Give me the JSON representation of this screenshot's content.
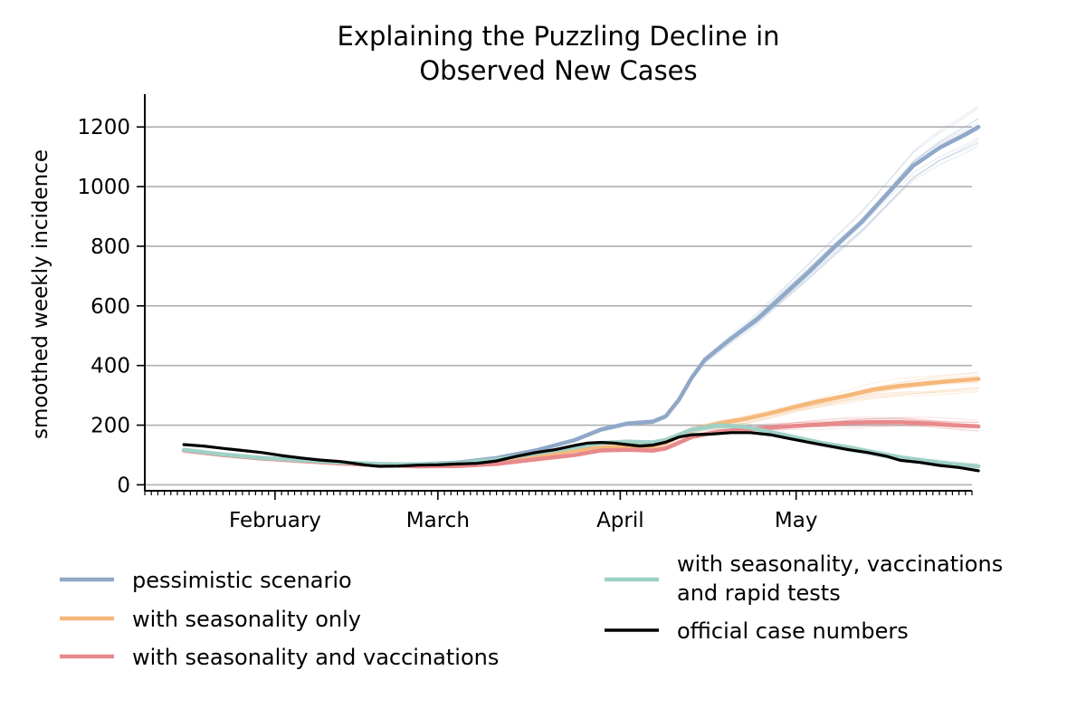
{
  "chart_data": {
    "type": "line",
    "title_lines": [
      "Explaining the Puzzling Decline in",
      "Observed New Cases"
    ],
    "xlabel": "",
    "ylabel": "smoothed weekly incidence",
    "x_tick_labels": [
      "February",
      "March",
      "April",
      "May"
    ],
    "y_ticks": [
      0,
      200,
      400,
      600,
      800,
      1000,
      1200
    ],
    "ylim": [
      -20,
      1310
    ],
    "x_range_days": [
      0,
      127
    ],
    "x_tick_days": [
      20,
      45,
      73,
      100
    ],
    "grid": "horizontal",
    "legend_position": "bottom",
    "series": [
      {
        "name": "pessimistic scenario",
        "color": "#8fa8c8",
        "points": [
          [
            6,
            115
          ],
          [
            12,
            100
          ],
          [
            18,
            90
          ],
          [
            24,
            82
          ],
          [
            30,
            74
          ],
          [
            36,
            68
          ],
          [
            42,
            69
          ],
          [
            48,
            74
          ],
          [
            54,
            90
          ],
          [
            60,
            115
          ],
          [
            66,
            150
          ],
          [
            70,
            185
          ],
          [
            74,
            205
          ],
          [
            78,
            212
          ],
          [
            80,
            230
          ],
          [
            82,
            285
          ],
          [
            84,
            360
          ],
          [
            86,
            420
          ],
          [
            90,
            490
          ],
          [
            94,
            555
          ],
          [
            98,
            635
          ],
          [
            102,
            715
          ],
          [
            106,
            800
          ],
          [
            110,
            880
          ],
          [
            114,
            975
          ],
          [
            118,
            1070
          ],
          [
            122,
            1130
          ],
          [
            126,
            1175
          ],
          [
            128,
            1200
          ]
        ]
      },
      {
        "name": "with seasonality only",
        "color": "#f5b87a",
        "points": [
          [
            6,
            115
          ],
          [
            12,
            100
          ],
          [
            18,
            88
          ],
          [
            24,
            80
          ],
          [
            30,
            72
          ],
          [
            36,
            66
          ],
          [
            42,
            64
          ],
          [
            48,
            66
          ],
          [
            54,
            78
          ],
          [
            60,
            95
          ],
          [
            66,
            115
          ],
          [
            70,
            125
          ],
          [
            74,
            130
          ],
          [
            78,
            130
          ],
          [
            80,
            140
          ],
          [
            84,
            185
          ],
          [
            88,
            205
          ],
          [
            92,
            220
          ],
          [
            96,
            240
          ],
          [
            100,
            262
          ],
          [
            104,
            282
          ],
          [
            108,
            300
          ],
          [
            112,
            320
          ],
          [
            116,
            332
          ],
          [
            120,
            340
          ],
          [
            124,
            348
          ],
          [
            128,
            355
          ]
        ]
      },
      {
        "name": "with seasonality and vaccinations",
        "color": "#e8898c",
        "points": [
          [
            6,
            115
          ],
          [
            12,
            100
          ],
          [
            18,
            88
          ],
          [
            24,
            80
          ],
          [
            30,
            72
          ],
          [
            36,
            66
          ],
          [
            42,
            62
          ],
          [
            48,
            63
          ],
          [
            54,
            70
          ],
          [
            60,
            85
          ],
          [
            66,
            100
          ],
          [
            70,
            115
          ],
          [
            74,
            118
          ],
          [
            78,
            115
          ],
          [
            80,
            122
          ],
          [
            84,
            160
          ],
          [
            88,
            178
          ],
          [
            92,
            186
          ],
          [
            96,
            192
          ],
          [
            100,
            198
          ],
          [
            104,
            203
          ],
          [
            108,
            208
          ],
          [
            112,
            210
          ],
          [
            116,
            210
          ],
          [
            120,
            206
          ],
          [
            124,
            200
          ],
          [
            128,
            196
          ]
        ]
      },
      {
        "name": "with seasonality, vaccinations and rapid tests",
        "color": "#9fd0c6",
        "points": [
          [
            6,
            118
          ],
          [
            12,
            102
          ],
          [
            18,
            90
          ],
          [
            24,
            82
          ],
          [
            30,
            75
          ],
          [
            36,
            70
          ],
          [
            42,
            68
          ],
          [
            48,
            72
          ],
          [
            54,
            85
          ],
          [
            60,
            105
          ],
          [
            66,
            125
          ],
          [
            70,
            140
          ],
          [
            74,
            145
          ],
          [
            78,
            142
          ],
          [
            80,
            150
          ],
          [
            84,
            185
          ],
          [
            88,
            200
          ],
          [
            92,
            195
          ],
          [
            96,
            178
          ],
          [
            100,
            158
          ],
          [
            104,
            140
          ],
          [
            108,
            125
          ],
          [
            112,
            108
          ],
          [
            116,
            92
          ],
          [
            120,
            80
          ],
          [
            124,
            70
          ],
          [
            128,
            62
          ]
        ]
      },
      {
        "name": "official case numbers",
        "color": "#000000",
        "points": [
          [
            6,
            135
          ],
          [
            9,
            130
          ],
          [
            12,
            122
          ],
          [
            15,
            115
          ],
          [
            18,
            108
          ],
          [
            21,
            98
          ],
          [
            24,
            90
          ],
          [
            27,
            83
          ],
          [
            30,
            78
          ],
          [
            32,
            72
          ],
          [
            34,
            66
          ],
          [
            36,
            62
          ],
          [
            39,
            63
          ],
          [
            42,
            66
          ],
          [
            45,
            67
          ],
          [
            48,
            70
          ],
          [
            51,
            72
          ],
          [
            54,
            80
          ],
          [
            57,
            95
          ],
          [
            60,
            108
          ],
          [
            63,
            118
          ],
          [
            66,
            132
          ],
          [
            68,
            140
          ],
          [
            70,
            142
          ],
          [
            72,
            140
          ],
          [
            74,
            135
          ],
          [
            76,
            130
          ],
          [
            78,
            133
          ],
          [
            80,
            143
          ],
          [
            82,
            160
          ],
          [
            84,
            168
          ],
          [
            87,
            170
          ],
          [
            90,
            175
          ],
          [
            93,
            175
          ],
          [
            96,
            168
          ],
          [
            99,
            155
          ],
          [
            102,
            142
          ],
          [
            105,
            130
          ],
          [
            108,
            118
          ],
          [
            111,
            108
          ],
          [
            114,
            95
          ],
          [
            116,
            82
          ],
          [
            119,
            75
          ],
          [
            122,
            65
          ],
          [
            125,
            58
          ],
          [
            128,
            47
          ]
        ]
      }
    ]
  }
}
